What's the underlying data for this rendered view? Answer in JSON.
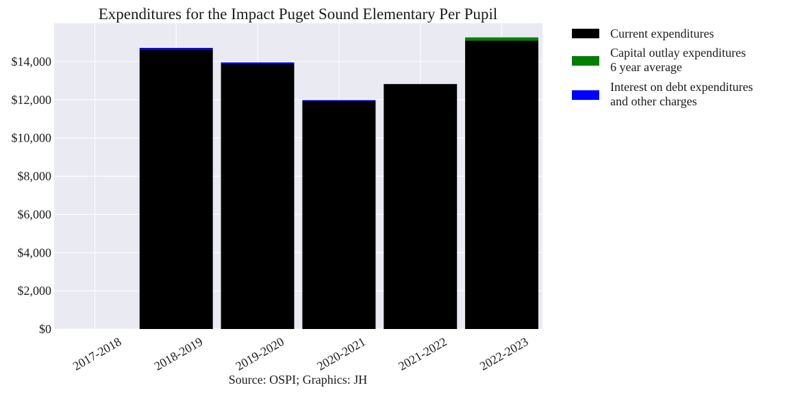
{
  "chart_data": {
    "type": "bar",
    "stacked": true,
    "title": "Expenditures for the Impact Puget Sound Elementary Per Pupil",
    "xlabel": "",
    "ylabel": "",
    "source_note": "Source: OSPI; Graphics: JH",
    "categories": [
      "2017-2018",
      "2018-2019",
      "2019-2020",
      "2020-2021",
      "2021-2022",
      "2022-2023"
    ],
    "ylim": [
      0,
      16000
    ],
    "yticks": [
      0,
      2000,
      4000,
      6000,
      8000,
      10000,
      12000,
      14000
    ],
    "ytick_labels": [
      "$0",
      "$2,000",
      "$4,000",
      "$6,000",
      "$8,000",
      "$10,000",
      "$12,000",
      "$14,000"
    ],
    "grid": true,
    "legend_position": "outside-right-top",
    "series": [
      {
        "name": "Current expenditures",
        "color": "#000000",
        "values": [
          0,
          14630,
          13870,
          11920,
          12820,
          15090
        ]
      },
      {
        "name": "Capital outlay expenditures\n6 year average",
        "color": "#008000",
        "values": [
          0,
          0,
          0,
          0,
          0,
          170
        ]
      },
      {
        "name": "Interest on debt expenditures\nand other charges",
        "color": "#0000ff",
        "values": [
          0,
          80,
          80,
          60,
          0,
          0
        ]
      }
    ]
  }
}
